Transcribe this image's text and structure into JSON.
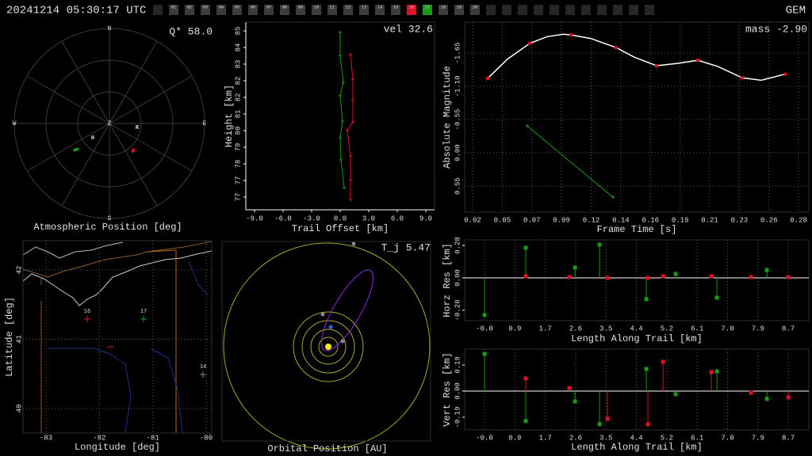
{
  "header": {
    "datetime": "20241214 05:30:17 UTC",
    "shower": "GEM",
    "stations": [
      "01",
      "02",
      "03",
      "04",
      "05",
      "06",
      "07",
      "08",
      "09",
      "10",
      "11",
      "12",
      "13",
      "14",
      "15",
      "16",
      "17",
      "18",
      "19",
      "20"
    ],
    "station_colors": {
      "16": "#e0102a",
      "17": "#1a9a1a"
    }
  },
  "chart_data": [
    {
      "type": "polar",
      "title": "Atmospheric Position [deg]",
      "annotation": "Q* 58.0",
      "cardinals": [
        "N",
        "E",
        "S",
        "W"
      ],
      "zenith": "Z",
      "station_labels": [
        "H",
        "R"
      ]
    },
    {
      "type": "line",
      "annotation": "vel 32.6",
      "xlabel": "Trail Offset [km]",
      "ylabel": "Height [km]",
      "xlim": [
        -9.92,
        9.92
      ],
      "ylim": [
        75.96,
        85.44
      ],
      "xticks": [
        {
          "value": -9,
          "label": "-9.0"
        },
        {
          "value": -6,
          "label": "-6.0"
        },
        {
          "value": -3,
          "label": "-3.0"
        },
        {
          "value": 0,
          "label": "0.0"
        },
        {
          "value": 3,
          "label": "3.0"
        },
        {
          "value": 6,
          "label": "6.0"
        },
        {
          "value": 9,
          "label": "9.0"
        }
      ],
      "yticks": [
        85,
        {
          "value": 84.16,
          "label": "84"
        },
        {
          "value": 83.32,
          "label": "83"
        },
        {
          "value": 82.48,
          "label": "82"
        },
        {
          "value": 81.64,
          "label": "82"
        },
        {
          "value": 80.8,
          "label": "81"
        },
        {
          "value": 79.96,
          "label": "80"
        },
        {
          "value": 79.12,
          "label": "79"
        },
        {
          "value": 78.28,
          "label": "78"
        },
        {
          "value": 77.44,
          "label": "77"
        },
        {
          "value": 76.6,
          "label": "77"
        }
      ],
      "grid": "none",
      "series": [
        {
          "color": "#1a9a1a",
          "kind": "linepoints",
          "x": [
            0,
            0,
            0.33,
            0,
            0.25,
            0,
            0.08,
            0.42
          ],
          "y": [
            84.92,
            83.76,
            82.4,
            81.72,
            80.44,
            79.6,
            78.48,
            77.08
          ]
        },
        {
          "color": "#e0102a",
          "kind": "linepoints",
          "x": [
            1.08,
            1.33,
            1.33,
            1.33,
            0.75,
            1.08,
            1.08,
            1.08
          ],
          "y": [
            83.8,
            82.56,
            81.48,
            80.4,
            79.96,
            78.68,
            77.48,
            76.48
          ]
        }
      ]
    },
    {
      "type": "line",
      "annotation": "mass -2.90",
      "xlabel": "Frame Time [s]",
      "ylabel": "Absolute Magnitude",
      "xlim": [
        0.0171,
        0.29
      ],
      "ylim": [
        0.98,
        -2.16
      ],
      "xticks": [
        {
          "value": 0.0234,
          "label": "0.02"
        },
        {
          "value": 0.0469,
          "label": "0.05"
        },
        {
          "value": 0.0704,
          "label": "0.07"
        },
        {
          "value": 0.0939,
          "label": "0.09"
        },
        {
          "value": 0.1174,
          "label": "0.12"
        },
        {
          "value": 0.1409,
          "label": "0.14"
        },
        {
          "value": 0.1644,
          "label": "0.16"
        },
        {
          "value": 0.1879,
          "label": "0.19"
        },
        {
          "value": 0.2114,
          "label": "0.21"
        },
        {
          "value": 0.2349,
          "label": "0.23"
        },
        {
          "value": 0.2584,
          "label": "0.26"
        },
        {
          "value": 0.2819,
          "label": "0.28"
        }
      ],
      "yticks": [
        -1.65,
        {
          "value": -1.1,
          "label": "-1.10"
        },
        -0.55,
        {
          "value": 0,
          "label": "0.00"
        },
        0.55
      ],
      "grid": "both",
      "series": [
        {
          "color": "#ffffff",
          "kind": "line",
          "x": [
            0.0353,
            0.0511,
            0.0687,
            0.0825,
            0.0951,
            0.1014,
            0.1171,
            0.1372,
            0.1517,
            0.1693,
            0.1862,
            0.202,
            0.2177,
            0.2372,
            0.2522,
            0.2711
          ],
          "y": [
            -1.23,
            -1.55,
            -1.81,
            -1.92,
            -1.96,
            -1.95,
            -1.89,
            -1.74,
            -1.58,
            -1.44,
            -1.48,
            -1.53,
            -1.43,
            -1.24,
            -1.2,
            -1.3
          ]
        },
        {
          "color": "#e0102a",
          "kind": "points",
          "x": [
            0.0353,
            0.0687,
            0.1014,
            0.1372,
            0.1693,
            0.202,
            0.2372,
            0.2711
          ],
          "y": [
            -1.23,
            -1.81,
            -1.95,
            -1.74,
            -1.44,
            -1.53,
            -1.24,
            -1.3
          ]
        },
        {
          "color": "#1a9a1a",
          "kind": "linepoints",
          "x": [
            0.0668,
            0.1347
          ],
          "y": [
            -0.445,
            0.733
          ]
        }
      ]
    },
    {
      "type": "map",
      "xlabel": "Longitude [deg]",
      "ylabel": "Latitude [deg]",
      "xlim": [
        -83.431,
        -79.896
      ],
      "ylim": [
        39.646,
        42.423
      ],
      "xticks": [
        -83,
        -82,
        -81,
        -80
      ],
      "yticks": [
        40,
        41,
        42
      ],
      "grid": "both",
      "points": {
        "labels": [
          "16",
          "17",
          "14"
        ],
        "x": [
          -82.228,
          -81.173,
          -80.059
        ],
        "y": [
          41.291,
          41.291,
          40.491
        ],
        "colors": [
          "#e0102a",
          "#1a9a1a",
          "#888888"
        ]
      }
    },
    {
      "type": "orbit",
      "title": "Orbital Position [AU]",
      "annotation": "T_j 5.47"
    },
    {
      "type": "stem",
      "xlabel": "Length Along Trail [km]",
      "ylabel": "Horz Res [km]",
      "xlim": [
        -0.571,
        9.32
      ],
      "ylim": [
        -0.369,
        0.328
      ],
      "xticks": [
        {
          "value": -0.001,
          "label": "-0.0"
        },
        {
          "value": 0.873,
          "label": "0.9"
        },
        {
          "value": 1.746,
          "label": "1.7"
        },
        {
          "value": 2.619,
          "label": "2.6"
        },
        {
          "value": 3.492,
          "label": "3.5"
        },
        {
          "value": 4.365,
          "label": "4.4"
        },
        {
          "value": 5.238,
          "label": "5.2"
        },
        {
          "value": 6.111,
          "label": "6.1"
        },
        {
          "value": 6.984,
          "label": "7.0"
        },
        {
          "value": 7.857,
          "label": "7.9"
        },
        {
          "value": 8.73,
          "label": "8.7"
        }
      ],
      "yticks": [
        -0.28,
        {
          "value": 0,
          "label": "0.00"
        },
        0.28
      ],
      "grid": "x",
      "zero_line": true,
      "series": [
        {
          "color": "#1a9a1a",
          "kind": "stem",
          "x": [
            0,
            1.185,
            2.599,
            3.306,
            4.651,
            5.494,
            6.679,
            8.115
          ],
          "y": [
            -0.321,
            0.26,
            0.089,
            0.287,
            -0.184,
            0.034,
            -0.171,
            0.068
          ]
        },
        {
          "color": "#e0102a",
          "kind": "stem",
          "x": [
            1.185,
            2.439,
            3.534,
            4.696,
            5.129,
            6.519,
            7.659,
            8.73
          ],
          "y": [
            0.014,
            0.007,
            0,
            0,
            0.014,
            0.014,
            0.007,
            0.007
          ]
        }
      ]
    },
    {
      "type": "stem",
      "xlabel": "Length Along Trail [km]",
      "ylabel": "Vert Res [km]",
      "xlim": [
        -0.571,
        9.32
      ],
      "ylim": [
        -0.282,
        0.305
      ],
      "xticks": [
        {
          "value": -0.001,
          "label": "-0.0"
        },
        {
          "value": 0.873,
          "label": "0.9"
        },
        {
          "value": 1.746,
          "label": "1.7"
        },
        {
          "value": 2.619,
          "label": "2.6"
        },
        {
          "value": 3.492,
          "label": "3.5"
        },
        {
          "value": 4.365,
          "label": "4.4"
        },
        {
          "value": 5.238,
          "label": "5.2"
        },
        {
          "value": 6.111,
          "label": "6.1"
        },
        {
          "value": 6.984,
          "label": "7.0"
        },
        {
          "value": 7.857,
          "label": "7.9"
        },
        {
          "value": 8.73,
          "label": "8.7"
        }
      ],
      "yticks": [
        -0.19,
        {
          "value": 0,
          "label": "0.00"
        },
        0.19
      ],
      "grid": "x",
      "zero_line": true,
      "series": [
        {
          "color": "#1a9a1a",
          "kind": "stem",
          "x": [
            0,
            1.185,
            2.599,
            3.306,
            4.651,
            5.494,
            6.679,
            8.115
          ],
          "y": [
            0.27,
            -0.218,
            -0.075,
            -0.241,
            0.161,
            -0.023,
            0.144,
            -0.057
          ]
        },
        {
          "color": "#e0102a",
          "kind": "stem",
          "x": [
            1.185,
            2.439,
            3.534,
            4.696,
            5.129,
            6.519,
            7.659,
            8.73
          ],
          "y": [
            0.092,
            0.023,
            -0.201,
            -0.241,
            0.213,
            0.138,
            -0.011,
            -0.046
          ]
        }
      ]
    }
  ]
}
